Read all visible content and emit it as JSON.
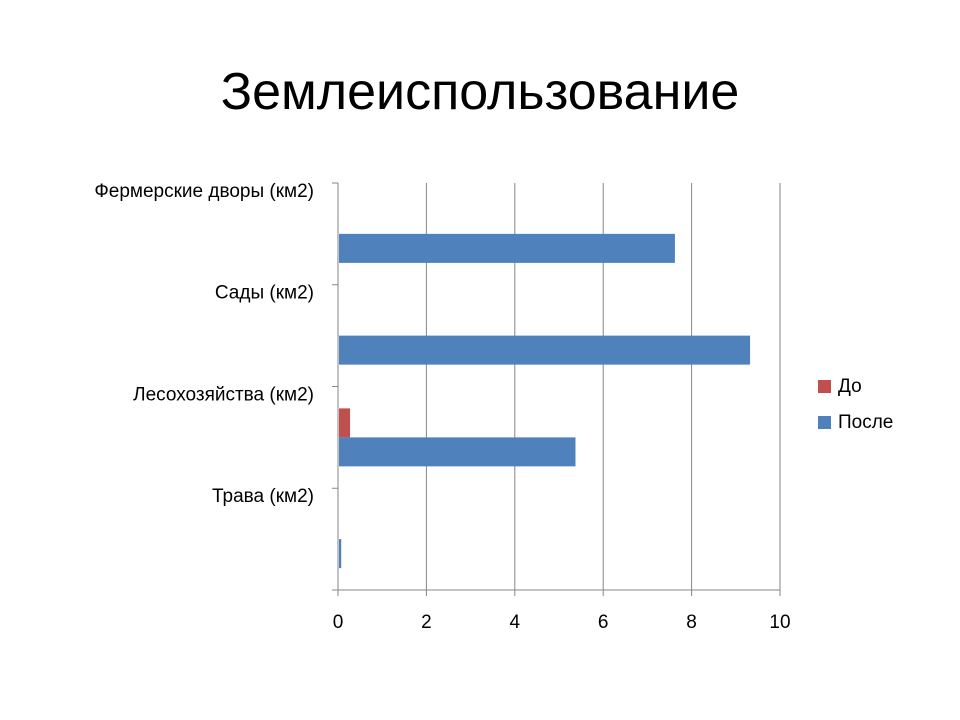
{
  "slide": {
    "title": "Землеиспользование"
  },
  "colors": {
    "before": "#C0504D",
    "after": "#4F81BD",
    "grid": "#868686",
    "text": "#000000"
  },
  "chart_data": {
    "type": "bar",
    "orientation": "horizontal",
    "title": "",
    "xlabel": "",
    "ylabel": "",
    "categories": [
      "Фермерские дворы (км2)",
      "Сады (км2)",
      "Лесохозяйства (км2)",
      "Трава (км2)"
    ],
    "series": [
      {
        "name": "До",
        "color": "#C0504D",
        "values": [
          0,
          0,
          0.25,
          0
        ]
      },
      {
        "name": "После",
        "color": "#4F81BD",
        "values": [
          7.6,
          9.3,
          5.35,
          0.05
        ]
      }
    ],
    "xlim": [
      0,
      10
    ],
    "xticks": [
      "0",
      "2",
      "4",
      "6",
      "8",
      "10"
    ],
    "grid": true,
    "legend": "right"
  }
}
